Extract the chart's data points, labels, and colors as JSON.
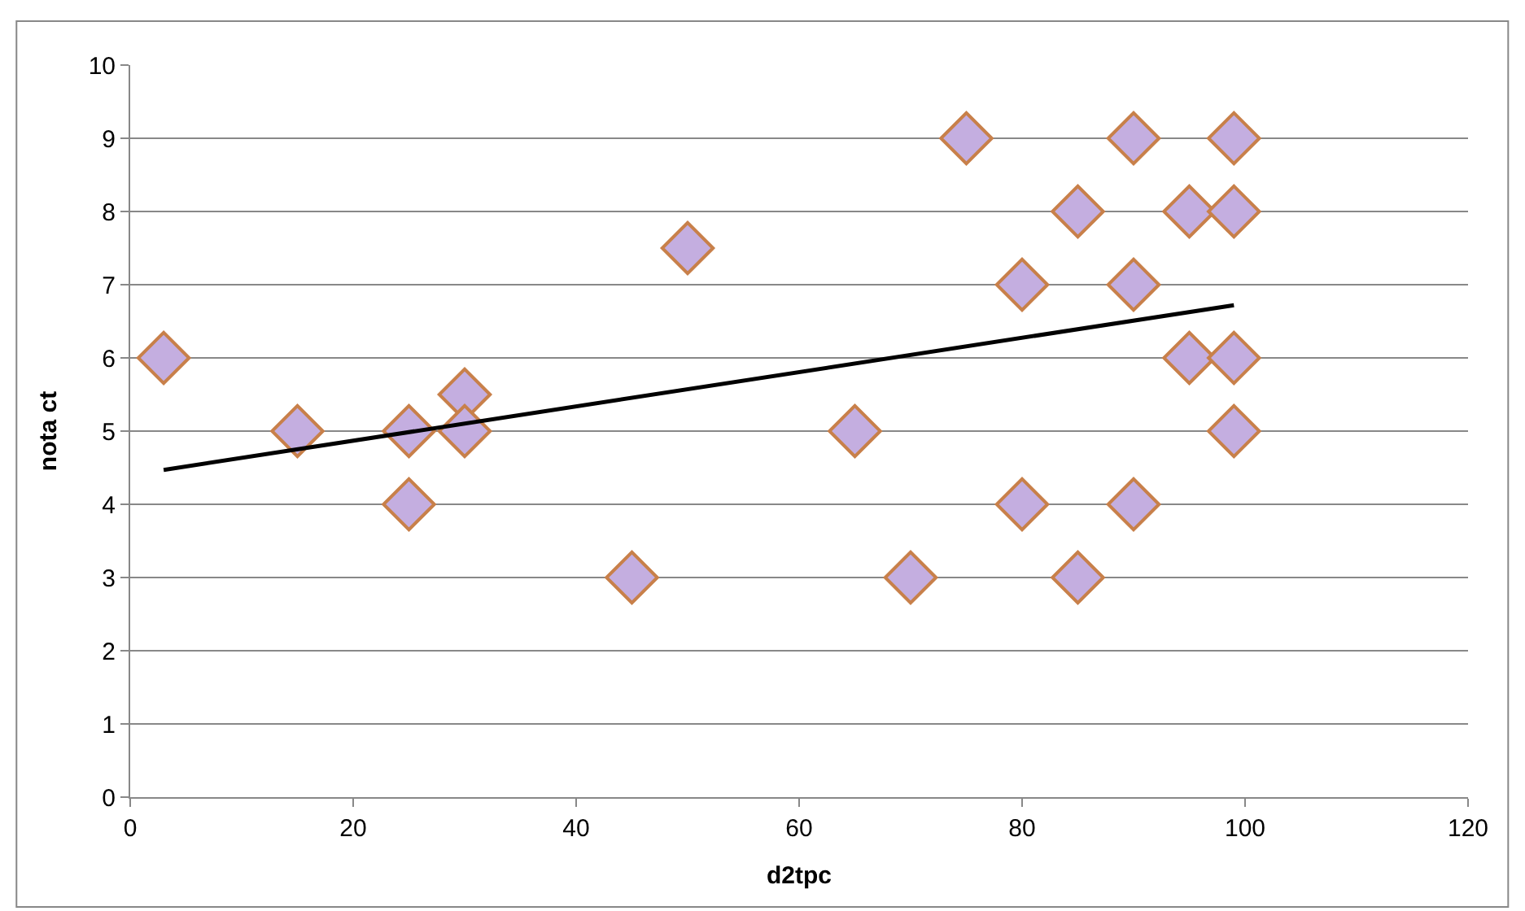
{
  "chart_data": {
    "type": "scatter",
    "xlabel": "d2tpc",
    "ylabel": "nota ct",
    "xlim": [
      0,
      120
    ],
    "xticks": [
      0,
      20,
      40,
      60,
      80,
      100,
      120
    ],
    "ylim": [
      0,
      10
    ],
    "yticks": [
      0,
      1,
      2,
      3,
      4,
      5,
      6,
      7,
      8,
      9,
      10
    ],
    "grid": "y",
    "legend": false,
    "marker": "diamond",
    "series": [
      {
        "color": "#c4aee0",
        "x": [
          3,
          15,
          25,
          25,
          30,
          30,
          45,
          50,
          65,
          70,
          75,
          80,
          80,
          85,
          85,
          90,
          90,
          90,
          95,
          95,
          99,
          99,
          99,
          99
        ],
        "values": [
          6,
          5,
          5,
          4,
          5.5,
          5,
          3,
          7.5,
          5,
          3,
          9,
          7,
          4,
          8,
          3,
          9,
          7,
          4,
          8,
          6,
          9,
          8,
          6,
          5
        ]
      },
      {
        "type": "line",
        "color": "#000000",
        "line_style": "solid",
        "marker": "none",
        "x": [
          3,
          99
        ],
        "values": [
          4.47,
          6.72
        ]
      }
    ]
  }
}
